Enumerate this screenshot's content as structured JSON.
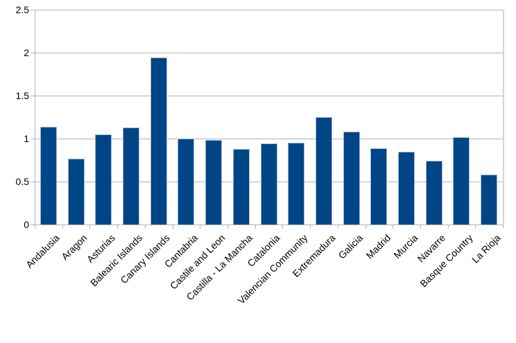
{
  "chart_data": {
    "type": "bar",
    "title": "",
    "xlabel": "",
    "ylabel": "",
    "categories": [
      "Andalusia",
      "Aragon",
      "Asturias",
      "Balearic Islands",
      "Canary Islands",
      "Cantabria",
      "Castile and Leon",
      "Castilla - La Mancha",
      "Catalonia",
      "Valencian Community",
      "Extremadura",
      "Galicia",
      "Madrid",
      "Murcia",
      "Navarre",
      "Basque Country",
      "La Rioja"
    ],
    "values": [
      1.14,
      0.77,
      1.05,
      1.13,
      1.94,
      1.0,
      0.98,
      0.88,
      0.94,
      0.95,
      1.25,
      1.08,
      0.89,
      0.85,
      0.74,
      1.02,
      0.58
    ],
    "ylim": [
      0,
      2.5
    ],
    "yticks": [
      {
        "label": "0",
        "value": 0
      },
      {
        "label": "0.5",
        "value": 0.5
      },
      {
        "label": "1",
        "value": 1
      },
      {
        "label": "1.5",
        "value": 1.5
      },
      {
        "label": "2",
        "value": 2
      },
      {
        "label": "2.5",
        "value": 2.5
      }
    ],
    "grid": true,
    "legend": "none",
    "colors": {
      "bar_fill": "#004586",
      "bar_border": "#9db6d3",
      "gridline": "#b3b3b3",
      "axis": "#b3b3b3",
      "wall_border": "#d4d4d4",
      "text": "#000000",
      "background": "#ffffff"
    }
  }
}
